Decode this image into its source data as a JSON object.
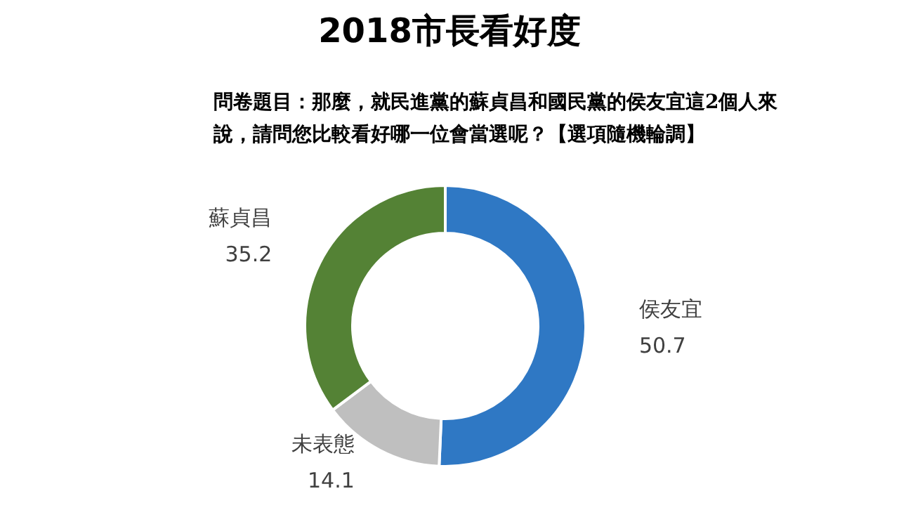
{
  "chart_data": {
    "type": "donut",
    "title": "2018市長看好度",
    "subtitle": "問卷題目：那麼，就民進黨的蘇貞昌和國民黨的侯友宜這2個人來說，請問您比較看好哪一位會當選呢？【選項隨機輪調】",
    "categories": [
      "侯友宜",
      "未表態",
      "蘇貞昌"
    ],
    "values": [
      50.7,
      14.1,
      35.2
    ],
    "colors": [
      "#2f78c4",
      "#bfbfbf",
      "#548235"
    ],
    "data_labels": true
  }
}
